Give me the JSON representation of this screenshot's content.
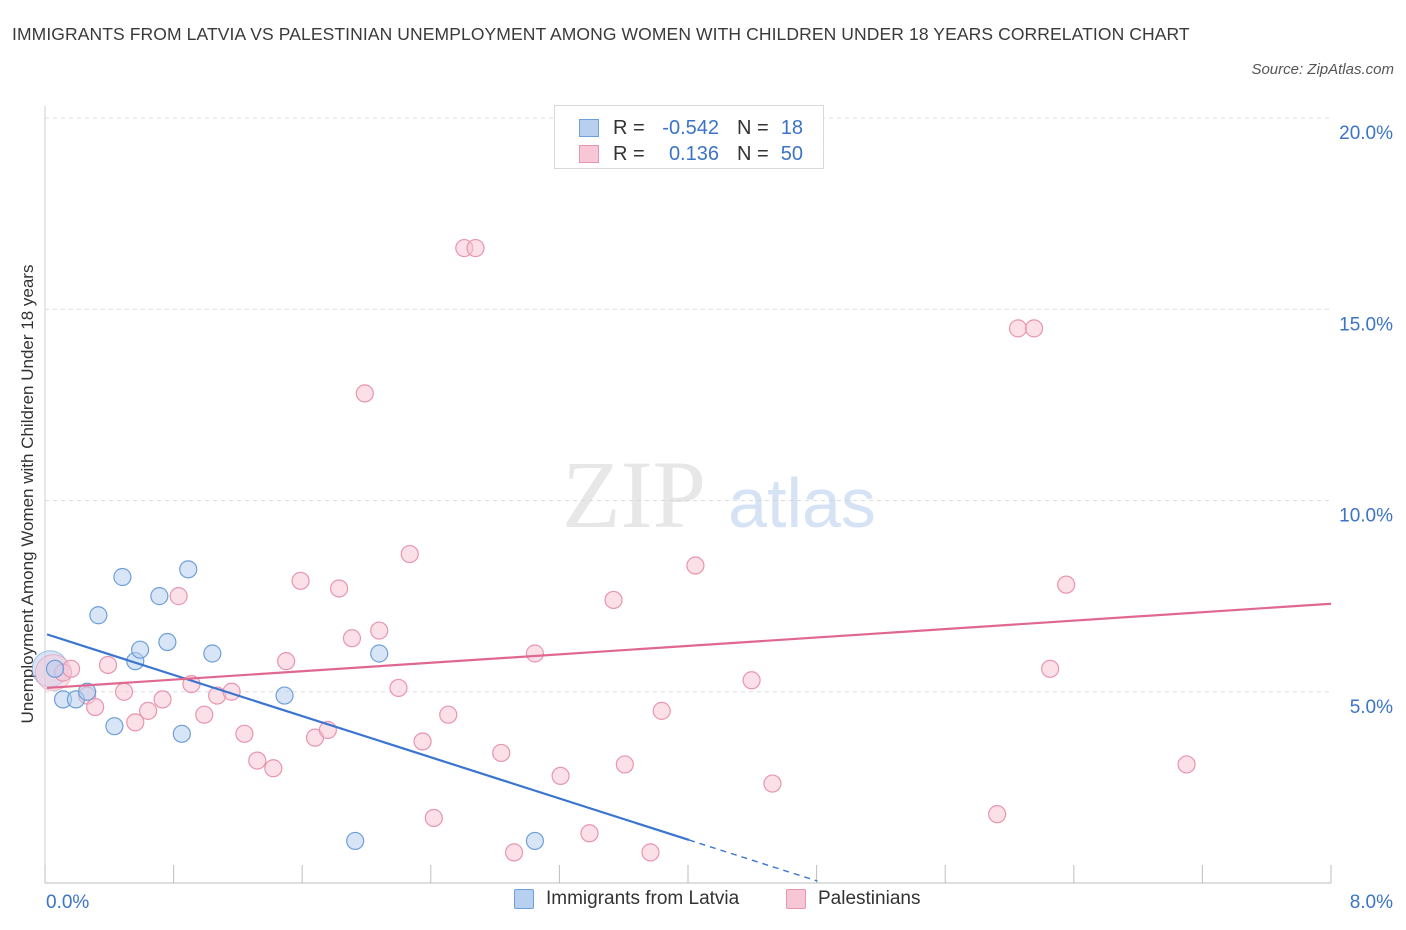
{
  "title": "IMMIGRANTS FROM LATVIA VS PALESTINIAN UNEMPLOYMENT AMONG WOMEN WITH CHILDREN UNDER 18 YEARS CORRELATION CHART",
  "source": "Source: ZipAtlas.com",
  "watermark": {
    "zip": "ZIP",
    "atlas": "atlas"
  },
  "legend_top": [
    {
      "r_label": "R =",
      "r_value": "-0.542",
      "n_label": "N =",
      "n_value": "18"
    },
    {
      "r_label": "R =",
      "r_value": "0.136",
      "n_label": "N =",
      "n_value": "50"
    }
  ],
  "legend_bottom": [
    "Immigrants from Latvia",
    "Palestinians"
  ],
  "chart_data": {
    "type": "scatter",
    "title": "IMMIGRANTS FROM LATVIA VS PALESTINIAN UNEMPLOYMENT AMONG WOMEN WITH CHILDREN UNDER 18 YEARS CORRELATION CHART",
    "xlabel": "",
    "ylabel": "Unemployment Among Women with Children Under 18 years",
    "xlim": [
      0,
      8
    ],
    "ylim": [
      0,
      20
    ],
    "x_tick_labels": [
      "0.0%",
      "8.0%"
    ],
    "y_tick_labels": [
      "5.0%",
      "10.0%",
      "15.0%",
      "20.0%"
    ],
    "y_ticks": [
      5,
      10,
      15,
      20
    ],
    "grid": "horizontal dashed",
    "legend_placement": "top-center and bottom",
    "colors": {
      "latvia_fill": "#b7d0f0",
      "latvia_stroke": "#6f9fd8",
      "latvia_line": "#3a75cf",
      "pal_fill": "#f7c7d6",
      "pal_stroke": "#e895b0",
      "pal_line": "#e0688f",
      "tick_text": "#3b74c6"
    },
    "series": [
      {
        "name": "Immigrants from Latvia",
        "r": -0.542,
        "n": 18,
        "points": [
          [
            0.05,
            5.6
          ],
          [
            0.1,
            4.8
          ],
          [
            0.18,
            4.8
          ],
          [
            0.25,
            5.0
          ],
          [
            0.32,
            7.0
          ],
          [
            0.42,
            4.1
          ],
          [
            0.47,
            8.0
          ],
          [
            0.55,
            5.8
          ],
          [
            0.58,
            6.1
          ],
          [
            0.7,
            7.5
          ],
          [
            0.75,
            6.3
          ],
          [
            0.84,
            3.9
          ],
          [
            0.88,
            8.2
          ],
          [
            1.03,
            6.0
          ],
          [
            1.48,
            4.9
          ],
          [
            2.07,
            6.0
          ],
          [
            1.92,
            1.1
          ],
          [
            3.04,
            1.1
          ]
        ],
        "trend": {
          "x": [
            0,
            4.8
          ],
          "y": [
            6.5,
            0.05
          ],
          "solid_until_x": 4.0
        }
      },
      {
        "name": "Palestinians",
        "r": 0.136,
        "n": 50,
        "points": [
          [
            0.1,
            5.5
          ],
          [
            0.15,
            5.6
          ],
          [
            0.25,
            4.9
          ],
          [
            0.3,
            4.6
          ],
          [
            0.38,
            5.7
          ],
          [
            0.48,
            5.0
          ],
          [
            0.55,
            4.2
          ],
          [
            0.63,
            4.5
          ],
          [
            0.72,
            4.8
          ],
          [
            0.82,
            7.5
          ],
          [
            0.9,
            5.2
          ],
          [
            0.98,
            4.4
          ],
          [
            1.06,
            4.9
          ],
          [
            1.15,
            5.0
          ],
          [
            1.23,
            3.9
          ],
          [
            1.31,
            3.2
          ],
          [
            1.41,
            3.0
          ],
          [
            1.49,
            5.8
          ],
          [
            1.58,
            7.9
          ],
          [
            1.67,
            3.8
          ],
          [
            1.75,
            4.0
          ],
          [
            1.82,
            7.7
          ],
          [
            1.9,
            6.4
          ],
          [
            1.98,
            12.8
          ],
          [
            2.07,
            6.6
          ],
          [
            2.19,
            5.1
          ],
          [
            2.26,
            8.6
          ],
          [
            2.34,
            3.7
          ],
          [
            2.41,
            1.7
          ],
          [
            2.5,
            4.4
          ],
          [
            2.6,
            16.6
          ],
          [
            2.67,
            16.6
          ],
          [
            2.83,
            3.4
          ],
          [
            2.91,
            0.8
          ],
          [
            3.04,
            6.0
          ],
          [
            3.2,
            2.8
          ],
          [
            3.38,
            1.3
          ],
          [
            3.53,
            7.4
          ],
          [
            3.6,
            3.1
          ],
          [
            3.76,
            0.8
          ],
          [
            3.83,
            4.5
          ],
          [
            4.04,
            8.3
          ],
          [
            4.39,
            5.3
          ],
          [
            4.52,
            2.6
          ],
          [
            5.92,
            1.8
          ],
          [
            6.05,
            14.5
          ],
          [
            6.15,
            14.5
          ],
          [
            6.25,
            5.6
          ],
          [
            6.35,
            7.8
          ],
          [
            7.1,
            3.1
          ]
        ],
        "trend": {
          "x": [
            0,
            8
          ],
          "y": [
            5.1,
            7.3
          ]
        }
      }
    ]
  }
}
